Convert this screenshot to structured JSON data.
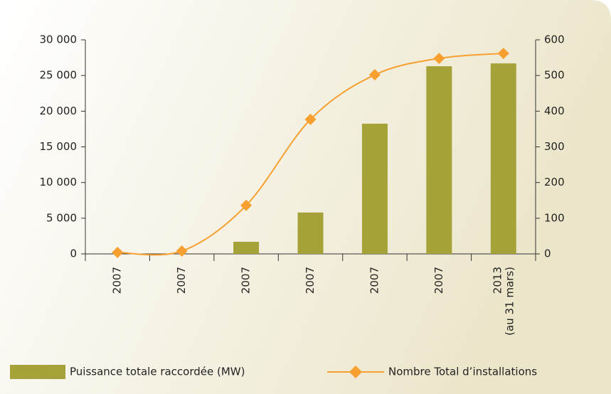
{
  "chart_data": {
    "type": "bar",
    "categories": [
      "2007",
      "2007",
      "2007",
      "2007",
      "2007",
      "2007",
      "2013"
    ],
    "annotation": "(au 31 mars)",
    "series": [
      {
        "name": "Puissance totale raccordée (MW)",
        "type": "bar",
        "color": "#a5a23a",
        "values": [
          0,
          0,
          1700,
          5800,
          18250,
          26300,
          26700
        ]
      },
      {
        "name": "Nombre Total d’installations",
        "type": "line",
        "color": "#f7a030",
        "axis": "y2",
        "values": [
          4,
          8,
          136,
          377,
          502,
          548,
          562
        ]
      }
    ],
    "ylim": [
      0,
      30000
    ],
    "yticks": [
      {
        "value": 0,
        "label": "0"
      },
      {
        "value": 5000,
        "label": "5 000"
      },
      {
        "value": 10000,
        "label": "10 000"
      },
      {
        "value": 15000,
        "label": "15 000"
      },
      {
        "value": 20000,
        "label": "20 000"
      },
      {
        "value": 25000,
        "label": "25 000"
      },
      {
        "value": 30000,
        "label": "30 000"
      }
    ],
    "y2lim": [
      0,
      600
    ],
    "y2ticks": [
      0,
      100,
      200,
      300,
      400,
      500,
      600
    ],
    "legend": "bottom"
  }
}
